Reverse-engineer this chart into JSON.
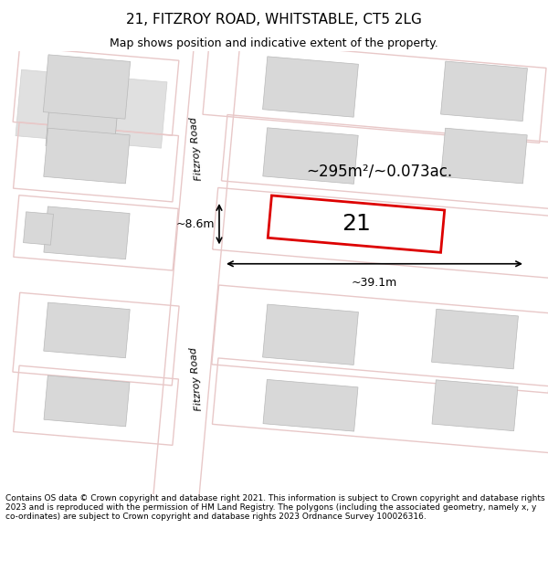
{
  "title": "21, FITZROY ROAD, WHITSTABLE, CT5 2LG",
  "subtitle": "Map shows position and indicative extent of the property.",
  "footer": "Contains OS data © Crown copyright and database right 2021. This information is subject to Crown copyright and database rights 2023 and is reproduced with the permission of HM Land Registry. The polygons (including the associated geometry, namely x, y co-ordinates) are subject to Crown copyright and database rights 2023 Ordnance Survey 100026316.",
  "background_color": "#ffffff",
  "map_bg": "#f9f0f0",
  "road_color": "#ffffff",
  "road_border_color": "#e8c8c8",
  "building_fill": "#e0e0e0",
  "building_border": "#c0c0c0",
  "plot_fill": "#ffffff",
  "plot_border_color": "#e8c8c8",
  "highlight_fill": "#ffffff",
  "highlight_border": "#dd0000",
  "road_label": "Fitzroy Road",
  "plot_number": "21",
  "area_label": "~295m²/~0.073ac.",
  "width_label": "~39.1m",
  "height_label": "~8.6m"
}
